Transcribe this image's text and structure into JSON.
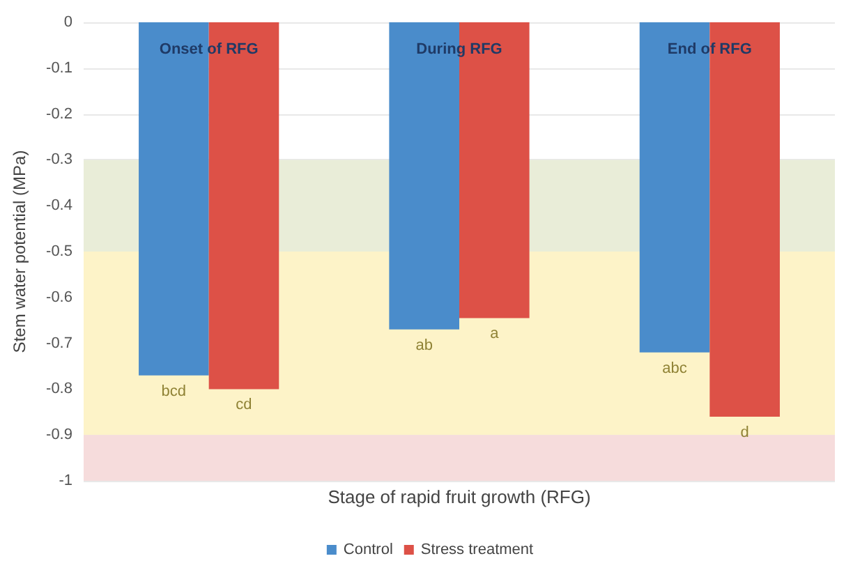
{
  "chart_data": {
    "type": "bar",
    "xlabel": "Stage of rapid fruit growth (RFG)",
    "ylabel": "Stem water potential (MPa)",
    "categories": [
      "Onset of RFG",
      "During RFG",
      "End of RFG"
    ],
    "series": [
      {
        "name": "Control",
        "color": "#4a8ccb",
        "values": [
          -0.77,
          -0.67,
          -0.72
        ],
        "value_labels": [
          "bcd",
          "ab",
          "abc"
        ]
      },
      {
        "name": "Stress treatment",
        "color": "#dd5147",
        "values": [
          -0.8,
          -0.645,
          -0.86
        ],
        "value_labels": [
          "cd",
          "a",
          "d"
        ]
      }
    ],
    "ylim": [
      -1,
      0
    ],
    "yticks": [
      -1,
      -0.9,
      -0.8,
      -0.7,
      -0.6,
      -0.5,
      -0.4,
      -0.3,
      -0.2,
      -0.1,
      0
    ],
    "bands": [
      {
        "axis": "y",
        "from": -0.5,
        "to": -0.3,
        "color": "#e9edd8"
      },
      {
        "axis": "y",
        "from": -0.9,
        "to": -0.5,
        "color": "#fdf3c8"
      },
      {
        "axis": "y",
        "from": -1,
        "to": -0.9,
        "color": "#f6dcdc"
      }
    ],
    "grid": "y",
    "legend": "bottom"
  }
}
